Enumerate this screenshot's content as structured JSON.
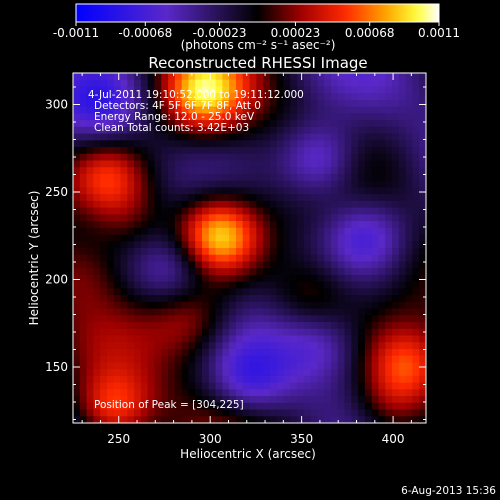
{
  "chart_data": {
    "type": "heatmap",
    "title": "Reconstructed RHESSI Image",
    "xlabel": "Heliocentric X (arcsec)",
    "ylabel": "Heliocentric Y (arcsec)",
    "xlim": [
      225,
      418
    ],
    "ylim": [
      118,
      318
    ],
    "xticks": [
      250,
      300,
      350,
      400
    ],
    "yticks": [
      150,
      200,
      250,
      300
    ],
    "colorbar": {
      "min": -0.0011,
      "max": 0.0011,
      "ticks": [
        "-0.0011",
        "-0.00068",
        "-0.00023",
        "0.00023",
        "0.00068",
        "0.0011"
      ],
      "tick_values": [
        -0.0011,
        -0.00068,
        -0.00023,
        0.00023,
        0.00068,
        0.0011
      ],
      "label": "(photons cm⁻² s⁻¹ asec⁻²)"
    },
    "info_lines": [
      "4-Jul-2011 19:10:52.000 to 19:11:12.000",
      "Detectors: 4F 5F 6F 7F 8F, Att 0",
      "Energy Range: 12.0 - 25.0 keV",
      "Clean    Total counts: 3.42E+03"
    ],
    "peak_text": "Position of Peak = [304,225]",
    "peak": {
      "x": 304,
      "y": 225,
      "value": 0.0011
    },
    "sources": [
      {
        "x": 304,
        "y": 225,
        "value": 0.00105
      },
      {
        "x": 296,
        "y": 306,
        "value": 0.00085
      },
      {
        "x": 244,
        "y": 258,
        "value": 0.0006
      },
      {
        "x": 408,
        "y": 150,
        "value": 0.00065
      },
      {
        "x": 398,
        "y": 124,
        "value": 0.00045
      },
      {
        "x": 246,
        "y": 124,
        "value": 0.0008
      },
      {
        "x": 290,
        "y": 178,
        "value": 0.00045
      },
      {
        "x": 355,
        "y": 190,
        "value": 0.0004
      },
      {
        "x": 258,
        "y": 232,
        "value": 0.00035
      },
      {
        "x": 233,
        "y": 205,
        "value": 0.0003
      },
      {
        "x": 360,
        "y": 268,
        "value": -0.0007
      },
      {
        "x": 385,
        "y": 225,
        "value": -0.0005
      },
      {
        "x": 322,
        "y": 142,
        "value": -0.0005
      },
      {
        "x": 360,
        "y": 162,
        "value": -0.0004
      },
      {
        "x": 240,
        "y": 298,
        "value": -0.00045
      },
      {
        "x": 280,
        "y": 205,
        "value": -0.0004
      }
    ]
  },
  "footer": {
    "date": "6-Aug-2013 15:36"
  }
}
